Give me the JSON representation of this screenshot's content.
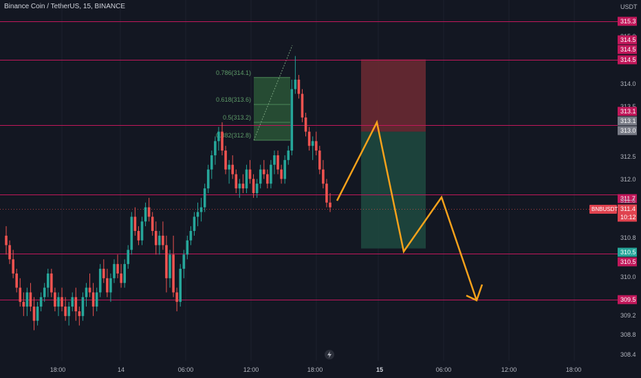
{
  "title": "Binance Coin / TetherUS, 15, BINANCE",
  "colors": {
    "background": "#131722",
    "bull": "#26a69a",
    "bear": "#ef5350",
    "level_line": "#c2185b",
    "projection": "#f7a21b",
    "fib": "#3f7a4d",
    "stop_zone": "#6e2a33",
    "target_zone": "#1e4a40",
    "text": "#b2b5be",
    "grid": "#1e222d"
  },
  "chart_data": {
    "type": "candlestick",
    "symbol": "BNBUSDT",
    "y_axis_unit": "USDT",
    "y_ticks": [
      "315.0",
      "314.0",
      "313.5",
      "312.5",
      "312.0",
      "310.8",
      "310.0",
      "309.2",
      "308.8",
      "308.4"
    ],
    "x_ticks": [
      "18:00",
      "14",
      "06:00",
      "12:00",
      "18:00",
      "15",
      "06:00",
      "12:00",
      "18:00"
    ],
    "ylim": [
      308.3,
      315.5
    ],
    "horizontal_levels": [
      {
        "price": 315.3,
        "label": "315.3"
      },
      {
        "price": 314.5,
        "label": "314.5"
      },
      {
        "price": 313.1,
        "label": "313.1"
      },
      {
        "price": 311.7,
        "label": "311.7"
      },
      {
        "price": 310.5,
        "label": "310.5"
      },
      {
        "price": 309.5,
        "label": "309.5"
      }
    ],
    "price_labels": [
      {
        "text": "315.3",
        "style": "level"
      },
      {
        "text": "314.5",
        "style": "level"
      },
      {
        "text": "314.5",
        "style": "level"
      },
      {
        "text": "314.5",
        "style": "level"
      },
      {
        "text": "313.1",
        "style": "level"
      },
      {
        "text": "313.1",
        "style": "grey"
      },
      {
        "text": "313.0",
        "style": "grey"
      },
      {
        "text": "311.7",
        "style": "level"
      },
      {
        "text": "311.6",
        "style": "plain"
      },
      {
        "text": "311.4",
        "style": "current"
      },
      {
        "text": "10:12",
        "style": "current"
      },
      {
        "text": "310.5",
        "style": "green"
      },
      {
        "text": "310.5",
        "style": "level"
      },
      {
        "text": "309.5",
        "style": "level"
      }
    ],
    "current_symbol_tag": "BNBUSDT",
    "current_price": 311.4,
    "countdown": "10:12",
    "fibonacci": [
      {
        "label": "0.786(314.1)"
      },
      {
        "label": "0.618(313.6)"
      },
      {
        "label": "0.5(313.2)"
      },
      {
        "label": "0.382(312.8)"
      }
    ],
    "position": {
      "entry": 313.0,
      "stop": 314.5,
      "target": 310.5
    },
    "projection_path_prices": [
      311.5,
      313.1,
      310.6,
      311.7,
      309.65,
      309.85,
      309.5,
      309.65
    ],
    "candles_ohlc": [
      [
        310.8,
        311.0,
        310.4,
        310.6
      ],
      [
        310.6,
        310.7,
        310.2,
        310.3
      ],
      [
        310.3,
        310.5,
        309.9,
        310.0
      ],
      [
        310.0,
        310.1,
        309.6,
        309.7
      ],
      [
        309.7,
        309.9,
        309.3,
        309.4
      ],
      [
        309.4,
        309.6,
        309.1,
        309.3
      ],
      [
        309.3,
        309.7,
        309.1,
        309.6
      ],
      [
        309.6,
        309.8,
        309.2,
        309.3
      ],
      [
        309.3,
        309.5,
        308.8,
        309.0
      ],
      [
        309.0,
        309.4,
        308.9,
        309.3
      ],
      [
        309.3,
        309.6,
        309.2,
        309.5
      ],
      [
        309.5,
        309.8,
        309.4,
        309.7
      ],
      [
        309.7,
        310.1,
        309.5,
        310.0
      ],
      [
        310.0,
        310.1,
        309.5,
        309.6
      ],
      [
        309.6,
        309.7,
        309.2,
        309.3
      ],
      [
        309.3,
        309.6,
        309.1,
        309.5
      ],
      [
        309.5,
        309.7,
        309.2,
        309.3
      ],
      [
        309.3,
        309.5,
        309.0,
        309.1
      ],
      [
        309.1,
        309.4,
        308.9,
        309.3
      ],
      [
        309.3,
        309.6,
        309.2,
        309.5
      ],
      [
        309.5,
        309.7,
        309.0,
        309.2
      ],
      [
        309.2,
        309.3,
        308.9,
        309.1
      ],
      [
        309.1,
        309.6,
        309.0,
        309.5
      ],
      [
        309.5,
        309.8,
        309.3,
        309.7
      ],
      [
        309.7,
        310.0,
        309.5,
        309.6
      ],
      [
        309.6,
        309.8,
        309.1,
        309.3
      ],
      [
        309.3,
        309.7,
        309.2,
        309.6
      ],
      [
        309.6,
        310.2,
        309.5,
        310.1
      ],
      [
        310.1,
        310.3,
        309.8,
        309.9
      ],
      [
        309.9,
        310.1,
        309.5,
        309.6
      ],
      [
        309.6,
        310.0,
        309.4,
        309.9
      ],
      [
        309.9,
        310.3,
        309.8,
        310.2
      ],
      [
        310.2,
        310.4,
        309.9,
        310.0
      ],
      [
        310.0,
        310.2,
        309.7,
        309.8
      ],
      [
        309.8,
        310.3,
        309.7,
        310.2
      ],
      [
        310.2,
        310.6,
        310.1,
        310.5
      ],
      [
        310.5,
        311.3,
        310.4,
        311.2
      ],
      [
        311.2,
        311.4,
        310.8,
        310.9
      ],
      [
        310.9,
        311.0,
        310.6,
        310.7
      ],
      [
        310.7,
        311.2,
        310.6,
        311.1
      ],
      [
        311.1,
        311.5,
        311.0,
        311.4
      ],
      [
        311.4,
        311.6,
        311.1,
        311.2
      ],
      [
        311.2,
        311.3,
        310.8,
        310.9
      ],
      [
        310.9,
        311.1,
        310.4,
        310.6
      ],
      [
        310.6,
        310.9,
        310.4,
        310.8
      ],
      [
        310.8,
        311.1,
        310.5,
        310.6
      ],
      [
        310.6,
        310.8,
        309.6,
        309.9
      ],
      [
        309.9,
        310.5,
        309.7,
        310.4
      ],
      [
        310.4,
        310.8,
        309.5,
        309.6
      ],
      [
        309.6,
        309.7,
        309.2,
        309.4
      ],
      [
        309.4,
        310.2,
        309.3,
        310.1
      ],
      [
        310.1,
        310.5,
        309.9,
        310.4
      ],
      [
        310.4,
        310.8,
        310.3,
        310.7
      ],
      [
        310.7,
        311.0,
        310.6,
        310.9
      ],
      [
        310.9,
        311.3,
        310.8,
        311.2
      ],
      [
        311.2,
        311.5,
        311.0,
        311.3
      ],
      [
        311.3,
        311.6,
        311.1,
        311.4
      ],
      [
        311.4,
        311.9,
        311.3,
        311.8
      ],
      [
        311.8,
        312.3,
        311.7,
        312.2
      ],
      [
        312.2,
        312.6,
        312.0,
        312.5
      ],
      [
        312.5,
        312.9,
        312.3,
        312.8
      ],
      [
        312.8,
        313.1,
        312.6,
        313.0
      ],
      [
        313.0,
        313.2,
        312.5,
        312.6
      ],
      [
        312.6,
        312.7,
        312.1,
        312.2
      ],
      [
        312.2,
        312.4,
        311.9,
        312.3
      ],
      [
        312.3,
        312.5,
        312.0,
        312.1
      ],
      [
        312.1,
        312.2,
        311.7,
        311.8
      ],
      [
        311.8,
        312.0,
        311.6,
        311.9
      ],
      [
        311.9,
        312.1,
        311.7,
        311.8
      ],
      [
        311.8,
        312.3,
        311.7,
        312.2
      ],
      [
        312.2,
        312.4,
        311.9,
        312.0
      ],
      [
        312.0,
        312.1,
        311.6,
        311.7
      ],
      [
        311.7,
        312.0,
        311.6,
        311.9
      ],
      [
        311.9,
        312.3,
        311.8,
        312.2
      ],
      [
        312.2,
        312.4,
        312.0,
        312.1
      ],
      [
        312.1,
        312.2,
        311.8,
        311.9
      ],
      [
        311.9,
        312.4,
        311.8,
        312.3
      ],
      [
        312.3,
        312.6,
        312.1,
        312.5
      ],
      [
        312.5,
        312.6,
        312.1,
        312.2
      ],
      [
        312.2,
        312.3,
        311.9,
        312.0
      ],
      [
        312.0,
        312.5,
        311.9,
        312.4
      ],
      [
        312.4,
        312.7,
        312.3,
        312.6
      ],
      [
        312.6,
        314.1,
        312.5,
        313.9
      ],
      [
        313.9,
        314.6,
        313.8,
        314.1
      ],
      [
        314.1,
        314.2,
        313.7,
        313.8
      ],
      [
        313.8,
        313.9,
        313.2,
        313.3
      ],
      [
        313.3,
        313.4,
        312.9,
        313.0
      ],
      [
        313.0,
        313.1,
        312.6,
        312.7
      ],
      [
        312.7,
        312.9,
        312.4,
        312.8
      ],
      [
        312.8,
        313.0,
        312.5,
        312.6
      ],
      [
        312.6,
        312.7,
        312.1,
        312.2
      ],
      [
        312.2,
        312.4,
        311.8,
        311.9
      ],
      [
        311.9,
        312.0,
        311.4,
        311.5
      ],
      [
        311.5,
        311.7,
        311.3,
        311.4
      ]
    ]
  }
}
